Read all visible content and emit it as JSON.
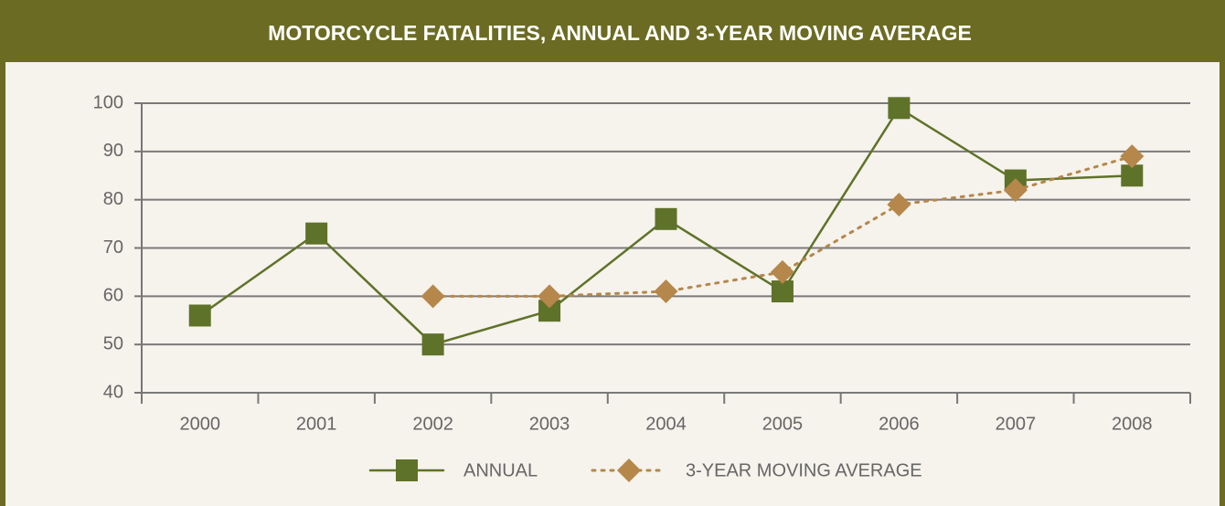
{
  "chart_data": {
    "type": "line",
    "title": "MOTORCYCLE FATALITIES, ANNUAL AND 3-YEAR MOVING AVERAGE",
    "categories": [
      "2000",
      "2001",
      "2002",
      "2003",
      "2004",
      "2005",
      "2006",
      "2007",
      "2008"
    ],
    "series": [
      {
        "name": "ANNUAL",
        "color": "#5f7229",
        "values": [
          56,
          73,
          50,
          57,
          76,
          61,
          99,
          84,
          85
        ]
      },
      {
        "name": "3-YEAR MOVING AVERAGE",
        "color": "#b5874a",
        "values": [
          null,
          null,
          60,
          60,
          61,
          65,
          79,
          82,
          89
        ]
      }
    ],
    "ylim": [
      40,
      100
    ],
    "yticks": [
      40,
      50,
      60,
      70,
      80,
      90,
      100
    ],
    "grid": true
  }
}
